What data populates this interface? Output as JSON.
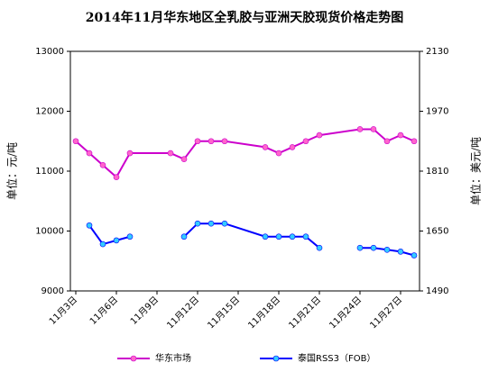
{
  "chart_data": {
    "type": "line",
    "title": "2014年11月华东地区全乳胶与亚洲天胶现货价格走势图",
    "ylabel": "单位：元/吨",
    "y2label": "单位：美元/吨",
    "xlim": [
      2.6,
      28.4
    ],
    "xticks": [
      {
        "value": 3,
        "label": "11月3日"
      },
      {
        "value": 6,
        "label": "11月6日"
      },
      {
        "value": 9,
        "label": "11月9日"
      },
      {
        "value": 12,
        "label": "11月12日"
      },
      {
        "value": 15,
        "label": "11月15日"
      },
      {
        "value": 18,
        "label": "11月18日"
      },
      {
        "value": 21,
        "label": "11月21日"
      },
      {
        "value": 24,
        "label": "11月24日"
      },
      {
        "value": 27,
        "label": "11月27日"
      }
    ],
    "ylim": [
      9000,
      13000
    ],
    "yticks": [
      9000,
      10000,
      11000,
      12000,
      13000
    ],
    "y2lim": [
      1490,
      2130
    ],
    "y2ticks": [
      1490,
      1650,
      1810,
      1970,
      2130
    ],
    "legend": "bottom",
    "series": [
      {
        "name": "华东市场",
        "color": "#cc00cc",
        "marker_color": "#ff66cc",
        "x": [
          3,
          4,
          5,
          6,
          7,
          10,
          11,
          12,
          13,
          14,
          17,
          18,
          19,
          20,
          21,
          24,
          25,
          26,
          27,
          28
        ],
        "values": [
          11500,
          11300,
          11100,
          10900,
          11300,
          11300,
          11200,
          11500,
          11500,
          11500,
          11400,
          11300,
          11400,
          11500,
          11600,
          11700,
          11700,
          11500,
          11600,
          11500
        ]
      },
      {
        "name": "泰国RSS3（FOB）",
        "color": "#0000ff",
        "marker_color": "#33ccff",
        "axis": "y2",
        "x": [
          4,
          5,
          6,
          7,
          8,
          11,
          12,
          13,
          14,
          17,
          18,
          19,
          20,
          21,
          22,
          24,
          25,
          26,
          27,
          28
        ],
        "values": [
          1665,
          1615,
          1625,
          1635,
          null,
          1635,
          1670,
          1670,
          1670,
          1635,
          1635,
          1635,
          1635,
          1605,
          null,
          1605,
          1605,
          1600,
          1595,
          1585
        ]
      }
    ]
  }
}
